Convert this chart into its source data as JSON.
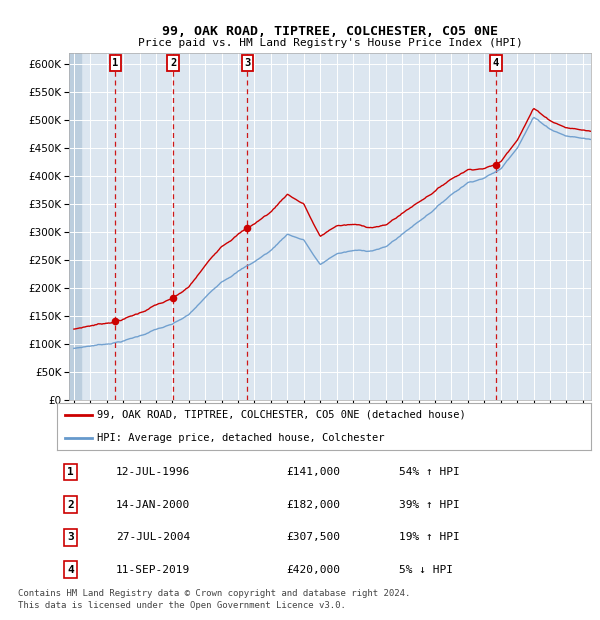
{
  "title": "99, OAK ROAD, TIPTREE, COLCHESTER, CO5 0NE",
  "subtitle": "Price paid vs. HM Land Registry's House Price Index (HPI)",
  "footer1": "Contains HM Land Registry data © Crown copyright and database right 2024.",
  "footer2": "This data is licensed under the Open Government Licence v3.0.",
  "legend_line1": "99, OAK ROAD, TIPTREE, COLCHESTER, CO5 0NE (detached house)",
  "legend_line2": "HPI: Average price, detached house, Colchester",
  "sale_color": "#cc0000",
  "hpi_color": "#6699cc",
  "background_plot": "#dce6f0",
  "background_hatch": "#bccede",
  "ylim": [
    0,
    620000
  ],
  "yticks": [
    0,
    50000,
    100000,
    150000,
    200000,
    250000,
    300000,
    350000,
    400000,
    450000,
    500000,
    550000,
    600000
  ],
  "xlim_start": 1993.7,
  "xlim_end": 2025.5,
  "sales": [
    {
      "year": 1996.53,
      "price": 141000,
      "label": "1"
    },
    {
      "year": 2000.04,
      "price": 182000,
      "label": "2"
    },
    {
      "year": 2004.57,
      "price": 307500,
      "label": "3"
    },
    {
      "year": 2019.7,
      "price": 420000,
      "label": "4"
    }
  ],
  "table": [
    {
      "num": "1",
      "date": "12-JUL-1996",
      "price": "£141,000",
      "pct": "54% ↑ HPI"
    },
    {
      "num": "2",
      "date": "14-JAN-2000",
      "price": "£182,000",
      "pct": "39% ↑ HPI"
    },
    {
      "num": "3",
      "date": "27-JUL-2004",
      "price": "£307,500",
      "pct": "19% ↑ HPI"
    },
    {
      "num": "4",
      "date": "11-SEP-2019",
      "price": "£420,000",
      "pct": "5% ↓ HPI"
    }
  ],
  "hpi_keypoints": [
    [
      1994.0,
      88000
    ],
    [
      1995.0,
      93000
    ],
    [
      1996.0,
      97000
    ],
    [
      1997.0,
      103000
    ],
    [
      1998.0,
      112000
    ],
    [
      1999.0,
      124000
    ],
    [
      2000.0,
      132000
    ],
    [
      2001.0,
      148000
    ],
    [
      2002.0,
      178000
    ],
    [
      2003.0,
      208000
    ],
    [
      2004.0,
      228000
    ],
    [
      2005.0,
      245000
    ],
    [
      2006.0,
      265000
    ],
    [
      2007.0,
      295000
    ],
    [
      2008.0,
      285000
    ],
    [
      2009.0,
      240000
    ],
    [
      2010.0,
      260000
    ],
    [
      2011.0,
      265000
    ],
    [
      2012.0,
      265000
    ],
    [
      2013.0,
      272000
    ],
    [
      2014.0,
      295000
    ],
    [
      2015.0,
      318000
    ],
    [
      2016.0,
      342000
    ],
    [
      2017.0,
      368000
    ],
    [
      2018.0,
      390000
    ],
    [
      2019.0,
      400000
    ],
    [
      2020.0,
      415000
    ],
    [
      2021.0,
      455000
    ],
    [
      2022.0,
      510000
    ],
    [
      2023.0,
      490000
    ],
    [
      2024.0,
      478000
    ],
    [
      2025.5,
      472000
    ]
  ]
}
